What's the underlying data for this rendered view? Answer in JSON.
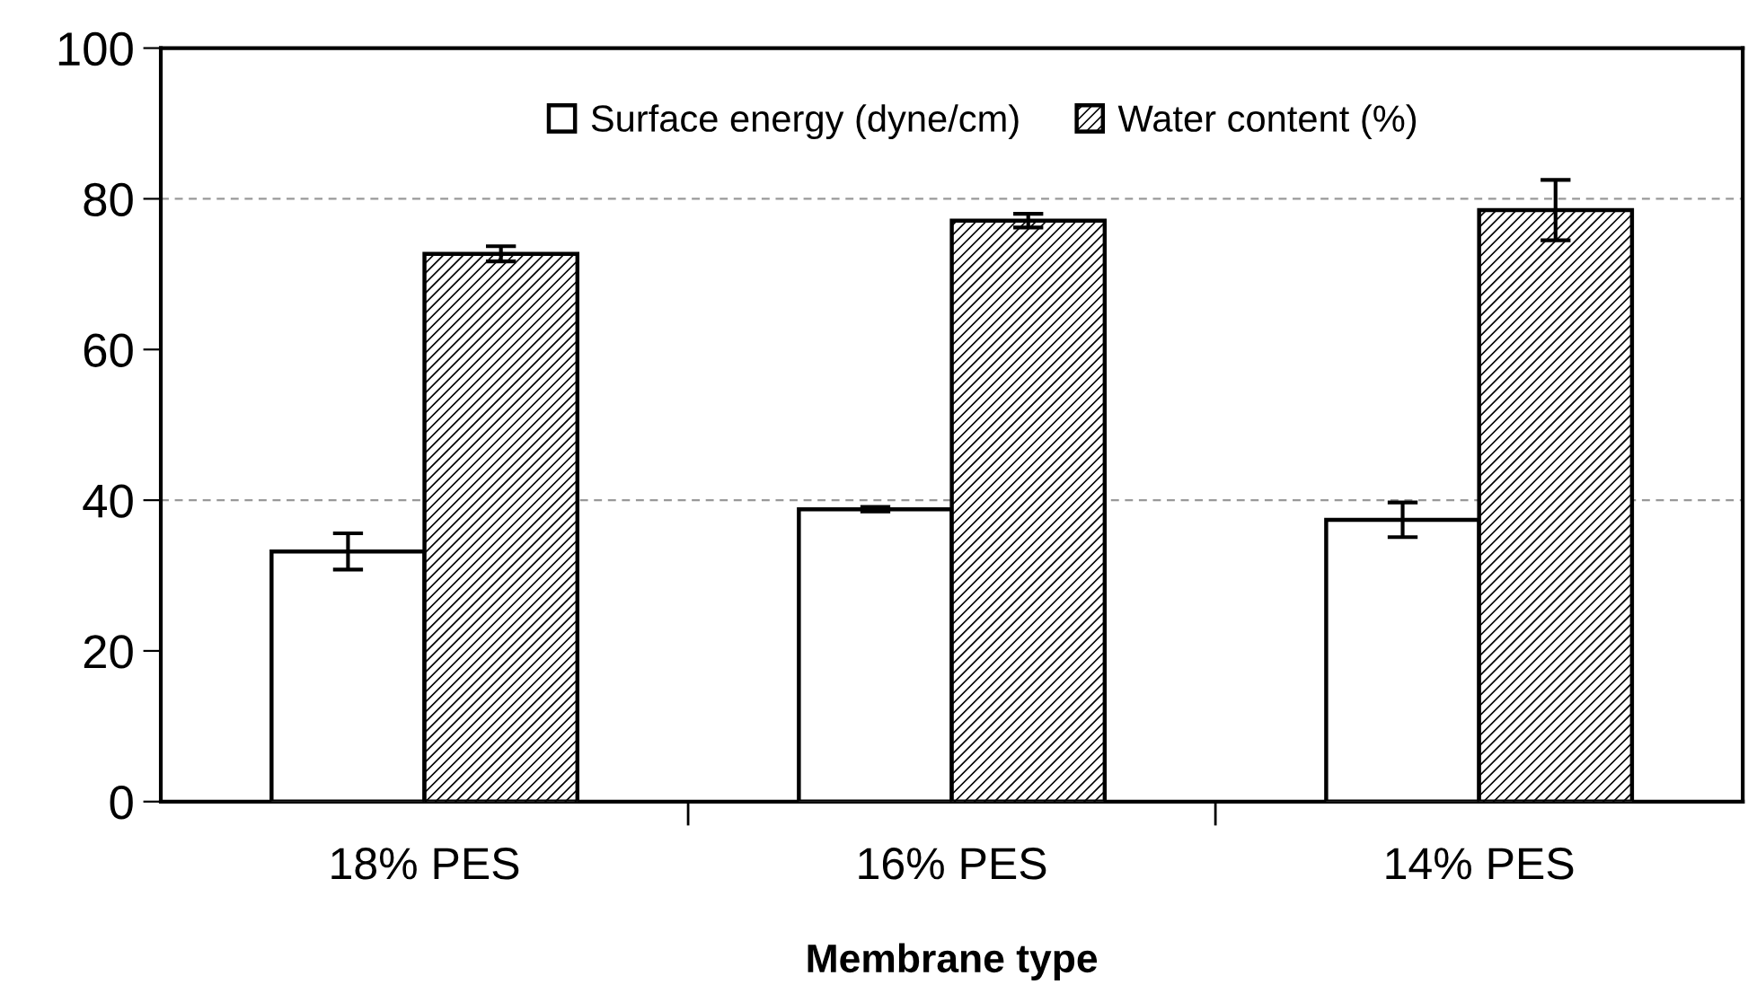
{
  "chart_data": {
    "type": "bar",
    "xlabel": "Membrane type",
    "categories": [
      "18% PES",
      "16% PES",
      "14% PES"
    ],
    "series": [
      {
        "name": "Surface energy (dyne/cm)",
        "color": "#ffffff",
        "values": [
          33.2,
          38.8,
          37.4
        ],
        "errors": [
          2.4,
          0.3,
          2.3
        ]
      },
      {
        "name": "Water content (%)",
        "color": "#000000",
        "values": [
          72.7,
          77.1,
          78.5
        ],
        "errors": [
          1.0,
          0.9,
          4.0
        ]
      }
    ],
    "ylim": [
      0,
      100
    ],
    "yticks": [
      0,
      20,
      40,
      60,
      80,
      100
    ],
    "ref_lines": [
      {
        "axis": "y",
        "value": 40,
        "color": "#999999",
        "line_style": "dashed"
      },
      {
        "axis": "y",
        "value": 80,
        "color": "#999999",
        "line_style": "dashed"
      }
    ],
    "legend": "top"
  }
}
